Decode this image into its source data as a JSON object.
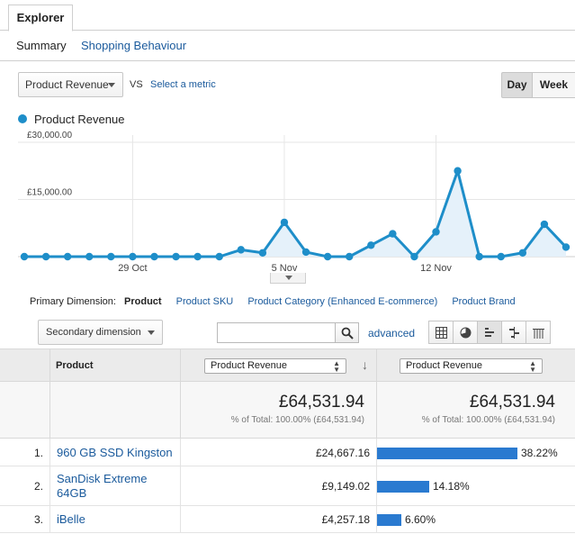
{
  "tabs": {
    "explorer": "Explorer"
  },
  "subtabs": {
    "summary": "Summary",
    "shopping": "Shopping Behaviour"
  },
  "metric_bar": {
    "selected": "Product Revenue",
    "vs": "VS",
    "select_metric": "Select a metric",
    "day": "Day",
    "week": "Week"
  },
  "legend": {
    "label": "Product Revenue",
    "color": "#1e8ec9"
  },
  "chart_data": {
    "type": "area",
    "series": [
      {
        "name": "Product Revenue",
        "values": [
          0,
          0,
          0,
          0,
          0,
          0,
          0,
          0,
          0,
          0,
          1800,
          1000,
          9000,
          1200,
          0,
          0,
          3000,
          6000,
          0,
          6500,
          22500,
          0,
          0,
          1000,
          8500,
          2500
        ]
      }
    ],
    "x_tick_labels": [
      {
        "label": "29 Oct",
        "index": 5
      },
      {
        "label": "5 Nov",
        "index": 12
      },
      {
        "label": "12 Nov",
        "index": 19
      }
    ],
    "y_tick_labels": [
      {
        "label": "£30,000.00",
        "value": 30000
      },
      {
        "label": "£15,000.00",
        "value": 15000
      }
    ],
    "ylim": [
      0,
      30000
    ],
    "grid": true,
    "color": "#1e8ec9"
  },
  "dimensions": {
    "label": "Primary Dimension:",
    "active": "Product",
    "items": [
      "Product SKU",
      "Product Category (Enhanced E-commerce)",
      "Product Brand"
    ]
  },
  "controls": {
    "secondary": "Secondary dimension",
    "search_value": "",
    "advanced": "advanced"
  },
  "table": {
    "headers": {
      "product": "Product",
      "metric1": "Product Revenue",
      "metric2": "Product Revenue"
    },
    "totals": {
      "value1": "£64,531.94",
      "pct1": "% of Total: 100.00% (£64,531.94)",
      "value2": "£64,531.94",
      "pct2": "% of Total: 100.00% (£64,531.94)"
    },
    "rows": [
      {
        "rank": "1.",
        "product": "960 GB SSD Kingston",
        "revenue": "£24,667.16",
        "percent": "38.22%",
        "share": 0.3822
      },
      {
        "rank": "2.",
        "product": "SanDisk Extreme 64GB",
        "revenue": "£9,149.02",
        "percent": "14.18%",
        "share": 0.1418
      },
      {
        "rank": "3.",
        "product": "iBelle",
        "revenue": "£4,257.18",
        "percent": "6.60%",
        "share": 0.066
      }
    ]
  }
}
